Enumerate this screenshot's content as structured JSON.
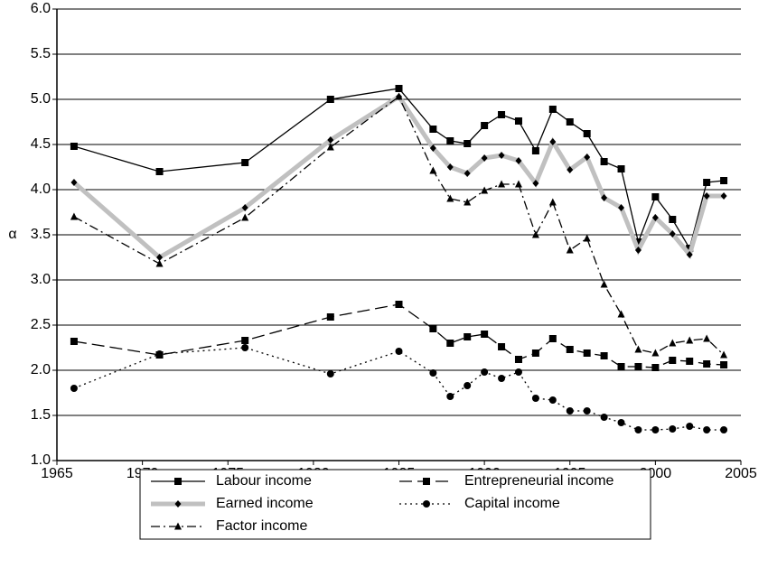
{
  "chart_data": {
    "type": "line",
    "ylabel": "α",
    "x": [
      1966,
      1971,
      1976,
      1981,
      1985,
      1987,
      1988,
      1989,
      1990,
      1991,
      1992,
      1993,
      1994,
      1995,
      1996,
      1997,
      1998,
      1999,
      2000,
      2001,
      2002,
      2003,
      2004
    ],
    "xlim": [
      1965,
      2005
    ],
    "xticks": [
      1965,
      1970,
      1975,
      1980,
      1985,
      1990,
      1995,
      2000,
      2005
    ],
    "ylim": [
      1,
      6
    ],
    "yticks": [
      {
        "value": 1,
        "label": "1.0"
      },
      1.5,
      {
        "value": 2,
        "label": "2.0"
      },
      2.5,
      {
        "value": 3,
        "label": "3.0"
      },
      3.5,
      {
        "value": 4,
        "label": "4.0"
      },
      4.5,
      {
        "value": 5,
        "label": "5.0"
      },
      5.5,
      {
        "value": 6,
        "label": "6.0"
      }
    ],
    "grid": true,
    "series": [
      {
        "name": "Labour income",
        "color": "#000000",
        "dash": "solid",
        "marker": "square",
        "values": [
          4.48,
          4.2,
          4.3,
          5.0,
          5.12,
          4.67,
          4.54,
          4.51,
          4.71,
          4.83,
          4.76,
          4.43,
          4.89,
          4.75,
          4.62,
          4.31,
          4.23,
          3.42,
          3.92,
          3.67,
          3.35,
          4.08,
          4.1
        ]
      },
      {
        "name": "Earned income",
        "color": "#c0c0c0",
        "dash": "thick",
        "marker": "diamond",
        "values": [
          4.08,
          3.25,
          3.8,
          4.55,
          5.03,
          4.46,
          4.25,
          4.18,
          4.35,
          4.38,
          4.32,
          4.07,
          4.53,
          4.22,
          4.36,
          3.91,
          3.8,
          3.33,
          3.69,
          3.51,
          3.28,
          3.93,
          3.93
        ]
      },
      {
        "name": "Factor income",
        "color": "#000000",
        "dash": "dashdot",
        "marker": "triangle",
        "values": [
          3.7,
          3.18,
          3.69,
          4.47,
          5.03,
          4.21,
          3.9,
          3.86,
          3.99,
          4.06,
          4.06,
          3.5,
          3.86,
          3.33,
          3.46,
          2.95,
          2.62,
          2.23,
          2.19,
          2.3,
          2.33,
          2.35,
          2.17
        ]
      },
      {
        "name": "Entrepreneurial income",
        "color": "#000000",
        "dash": "dash",
        "marker": "square",
        "values": [
          2.32,
          2.17,
          2.33,
          2.59,
          2.73,
          2.46,
          2.3,
          2.37,
          2.4,
          2.26,
          2.12,
          2.19,
          2.35,
          2.23,
          2.19,
          2.16,
          2.04,
          2.04,
          2.03,
          2.11,
          2.1,
          2.07,
          2.06
        ]
      },
      {
        "name": "Capital income",
        "color": "#000000",
        "dash": "dot",
        "marker": "circle",
        "values": [
          1.8,
          2.18,
          2.25,
          1.96,
          2.21,
          1.97,
          1.71,
          1.83,
          1.98,
          1.91,
          1.98,
          1.69,
          1.67,
          1.55,
          1.55,
          1.48,
          1.42,
          1.34,
          1.34,
          1.35,
          1.38,
          1.34,
          1.34
        ]
      }
    ]
  }
}
